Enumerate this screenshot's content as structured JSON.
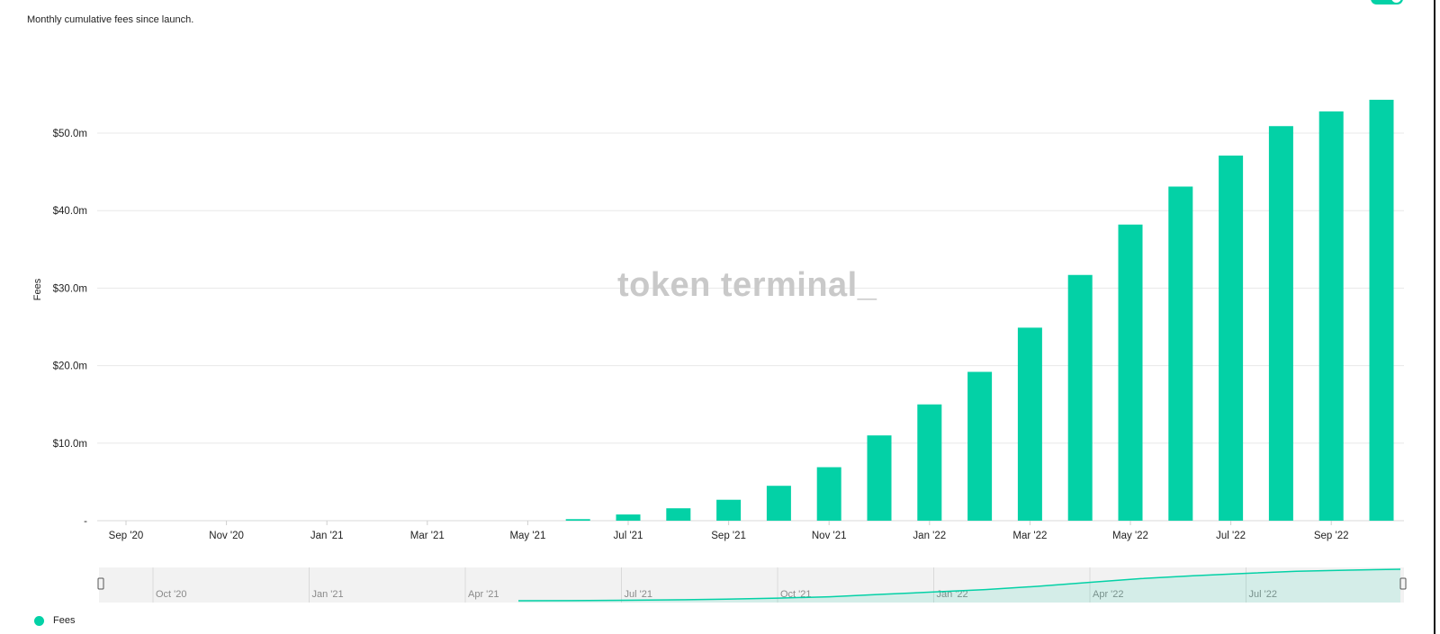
{
  "subtitle": "Monthly cumulative fees since launch.",
  "watermark": "token terminal_",
  "colors": {
    "accent": "#03d1a6",
    "grid": "#e8e8e8",
    "navigator_bg": "#f2f2f2"
  },
  "chart_data": {
    "type": "bar",
    "title": "",
    "ylabel": "Fees",
    "xlabel": "",
    "categories": [
      "Sep '20",
      "Oct '20",
      "Nov '20",
      "Dec '20",
      "Jan '21",
      "Feb '21",
      "Mar '21",
      "Apr '21",
      "May '21",
      "Jun '21",
      "Jul '21",
      "Aug '21",
      "Sep '21",
      "Oct '21",
      "Nov '21",
      "Dec '21",
      "Jan '22",
      "Feb '22",
      "Mar '22",
      "Apr '22",
      "May '22",
      "Jun '22",
      "Jul '22",
      "Aug '22",
      "Sep '22",
      "Oct '22"
    ],
    "x_tick_labels": [
      "Sep '20",
      "Nov '20",
      "Jan '21",
      "Mar '21",
      "May '21",
      "Jul '21",
      "Sep '21",
      "Nov '21",
      "Jan '22",
      "Mar '22",
      "May '22",
      "Jul '22",
      "Sep '22"
    ],
    "series": [
      {
        "name": "Fees",
        "values": [
          0,
          0,
          0,
          0,
          0,
          0,
          0,
          0,
          0,
          0.2,
          0.8,
          1.6,
          2.7,
          4.5,
          6.9,
          11.0,
          15.0,
          19.2,
          24.9,
          31.7,
          38.2,
          43.1,
          47.1,
          50.9,
          52.8,
          54.3
        ]
      }
    ],
    "ylim": [
      0,
      56
    ],
    "y_ticks": [
      0,
      10,
      20,
      30,
      40,
      50
    ],
    "y_tick_labels": [
      "-",
      "$10.0m",
      "$20.0m",
      "$30.0m",
      "$40.0m",
      "$50.0m"
    ],
    "grid": true,
    "legend": "bottom-left"
  },
  "navigator": {
    "tick_labels": [
      "Oct '20",
      "Jan '21",
      "Apr '21",
      "Jul '21",
      "Oct '21",
      "Jan '22",
      "Apr '22",
      "Jul '22"
    ]
  },
  "legend": {
    "label": "Fees"
  }
}
